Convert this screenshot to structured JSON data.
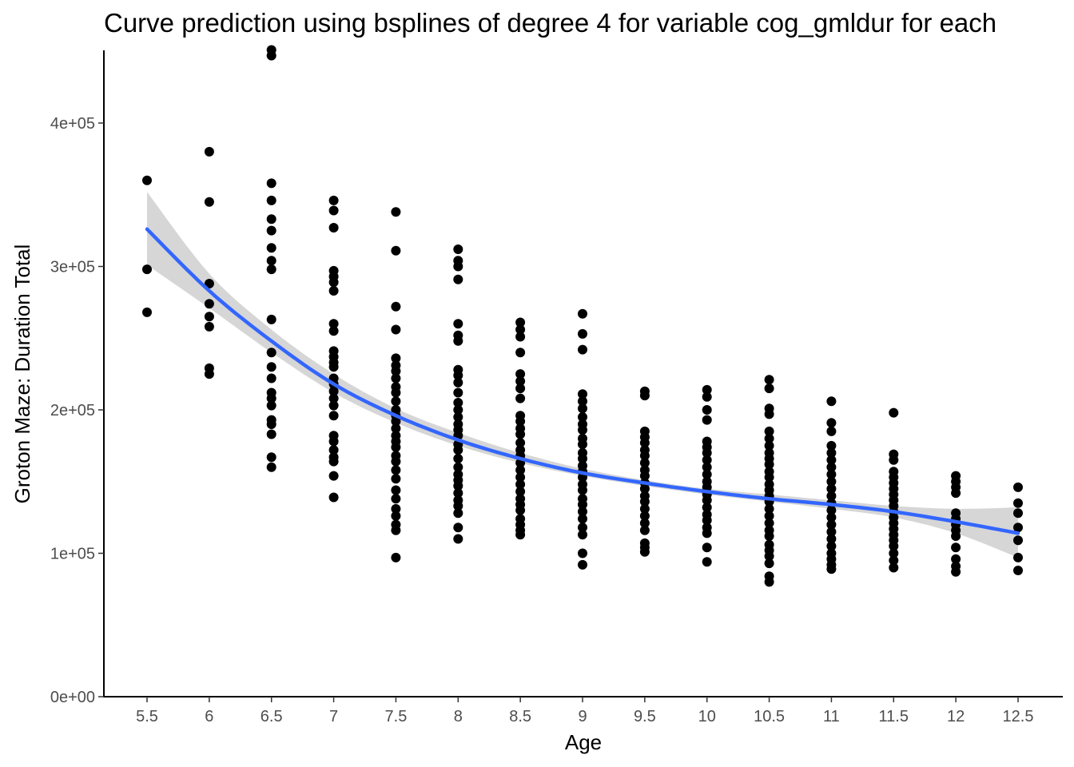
{
  "chart_data": {
    "type": "scatter",
    "title": "Curve prediction using bsplines of degree 4  for variable cog_gmldur for each",
    "xlabel": "Age",
    "ylabel": "Groton Maze: Duration Total",
    "xlim": [
      5.3,
      12.85
    ],
    "ylim": [
      0,
      450000
    ],
    "grid": false,
    "x_ticks": [
      5.5,
      6,
      6.5,
      7,
      7.5,
      8,
      8.5,
      9,
      9.5,
      10,
      10.5,
      11,
      11.5,
      12,
      12.5
    ],
    "x_tick_labels": [
      "5.5",
      "6",
      "6.5",
      "7",
      "7.5",
      "8",
      "8.5",
      "9",
      "9.5",
      "10",
      "10.5",
      "11",
      "11.5",
      "12",
      "12.5"
    ],
    "y_ticks": [
      0,
      100000,
      200000,
      300000,
      400000
    ],
    "y_tick_labels": [
      "0e+00",
      "1e+05",
      "2e+05",
      "3e+05",
      "4e+05"
    ],
    "colors": {
      "points": "#000000",
      "fit_line": "#3366FF",
      "confidence_band": "#d6d6d6"
    },
    "points": [
      {
        "x": 5.5,
        "y": [
          360000,
          298000,
          268000
        ]
      },
      {
        "x": 6,
        "y": [
          380000,
          345000,
          288000,
          274000,
          265000,
          258000,
          229000,
          225000
        ]
      },
      {
        "x": 6.5,
        "y": [
          451000,
          447000,
          358000,
          346000,
          333000,
          325000,
          313000,
          304000,
          298000,
          263000,
          240000,
          230000,
          222000,
          212000,
          208000,
          203000,
          193000,
          190000,
          183000,
          167000,
          160000
        ]
      },
      {
        "x": 7,
        "y": [
          346000,
          339000,
          327000,
          297000,
          293000,
          289000,
          283000,
          260000,
          255000,
          241000,
          237000,
          233000,
          230000,
          222000,
          218000,
          213000,
          208000,
          203000,
          196000,
          182000,
          178000,
          172000,
          167000,
          164000,
          154000,
          139000
        ]
      },
      {
        "x": 7.5,
        "y": [
          338000,
          311000,
          272000,
          256000,
          236000,
          231000,
          227000,
          222000,
          216000,
          212000,
          206000,
          200000,
          196000,
          192000,
          187000,
          182000,
          178000,
          174000,
          168000,
          164000,
          158000,
          152000,
          144000,
          138000,
          131000,
          126000,
          120000,
          116000,
          97000
        ]
      },
      {
        "x": 8,
        "y": [
          312000,
          304000,
          300000,
          291000,
          260000,
          252000,
          248000,
          228000,
          224000,
          219000,
          212000,
          205000,
          200000,
          195000,
          190000,
          186000,
          182000,
          176000,
          172000,
          166000,
          160000,
          155000,
          151000,
          147000,
          142000,
          137000,
          133000,
          128000,
          118000,
          110000
        ]
      },
      {
        "x": 8.5,
        "y": [
          261000,
          256000,
          251000,
          240000,
          225000,
          220000,
          215000,
          208000,
          196000,
          192000,
          187000,
          183000,
          177000,
          172000,
          168000,
          163000,
          158000,
          153000,
          148000,
          143000,
          138000,
          134000,
          130000,
          124000,
          120000,
          116000,
          113000
        ]
      },
      {
        "x": 9,
        "y": [
          267000,
          253000,
          242000,
          211000,
          206000,
          201000,
          195000,
          190000,
          186000,
          180000,
          176000,
          170000,
          166000,
          161000,
          157000,
          153000,
          148000,
          144000,
          138000,
          134000,
          129000,
          124000,
          118000,
          113000,
          100000,
          92000
        ]
      },
      {
        "x": 9.5,
        "y": [
          213000,
          210000,
          185000,
          181000,
          177000,
          172000,
          168000,
          163000,
          158000,
          154000,
          149000,
          145000,
          140000,
          136000,
          131000,
          126000,
          121000,
          116000,
          107000,
          104000,
          101000
        ]
      },
      {
        "x": 10,
        "y": [
          214000,
          209000,
          200000,
          193000,
          178000,
          174000,
          170000,
          165000,
          160000,
          155000,
          150000,
          146000,
          141000,
          137000,
          132000,
          127000,
          123000,
          118000,
          114000,
          104000,
          94000
        ]
      },
      {
        "x": 10.5,
        "y": [
          221000,
          215000,
          201000,
          197000,
          185000,
          180000,
          175000,
          170000,
          166000,
          162000,
          157000,
          153000,
          148000,
          144000,
          140000,
          136000,
          131000,
          126000,
          121000,
          116000,
          112000,
          106000,
          102000,
          98000,
          93000,
          84000,
          80000
        ]
      },
      {
        "x": 11,
        "y": [
          206000,
          191000,
          185000,
          175000,
          170000,
          165000,
          160000,
          155000,
          150000,
          145000,
          140000,
          135000,
          130000,
          125000,
          120000,
          115000,
          110000,
          105000,
          100000,
          96000,
          92000,
          89000
        ]
      },
      {
        "x": 11.5,
        "y": [
          198000,
          169000,
          165000,
          157000,
          153000,
          149000,
          145000,
          141000,
          137000,
          133000,
          129000,
          125000,
          121000,
          117000,
          113000,
          109000,
          105000,
          100000,
          95000,
          90000
        ]
      },
      {
        "x": 12,
        "y": [
          154000,
          150000,
          146000,
          142000,
          128000,
          124000,
          120000,
          116000,
          112000,
          104000,
          96000,
          91000,
          87000
        ]
      },
      {
        "x": 12.5,
        "y": [
          146000,
          135000,
          128000,
          118000,
          109000,
          97000,
          88000
        ]
      }
    ],
    "fit": {
      "x": [
        5.5,
        6,
        6.5,
        7,
        7.5,
        8,
        8.5,
        9,
        9.5,
        10,
        10.5,
        11,
        11.5,
        12,
        12.5
      ],
      "y": [
        326000,
        283000,
        248000,
        218000,
        196000,
        179000,
        166000,
        156000,
        149000,
        143000,
        138000,
        134000,
        129000,
        122000,
        114000
      ],
      "lower": [
        301000,
        271000,
        240000,
        212000,
        191000,
        175000,
        163000,
        154000,
        147000,
        141000,
        136000,
        131000,
        125000,
        114000,
        97000
      ],
      "upper": [
        352000,
        295000,
        256000,
        225000,
        201000,
        184000,
        170000,
        159000,
        151000,
        145000,
        141000,
        137000,
        133000,
        131000,
        132000
      ]
    }
  }
}
